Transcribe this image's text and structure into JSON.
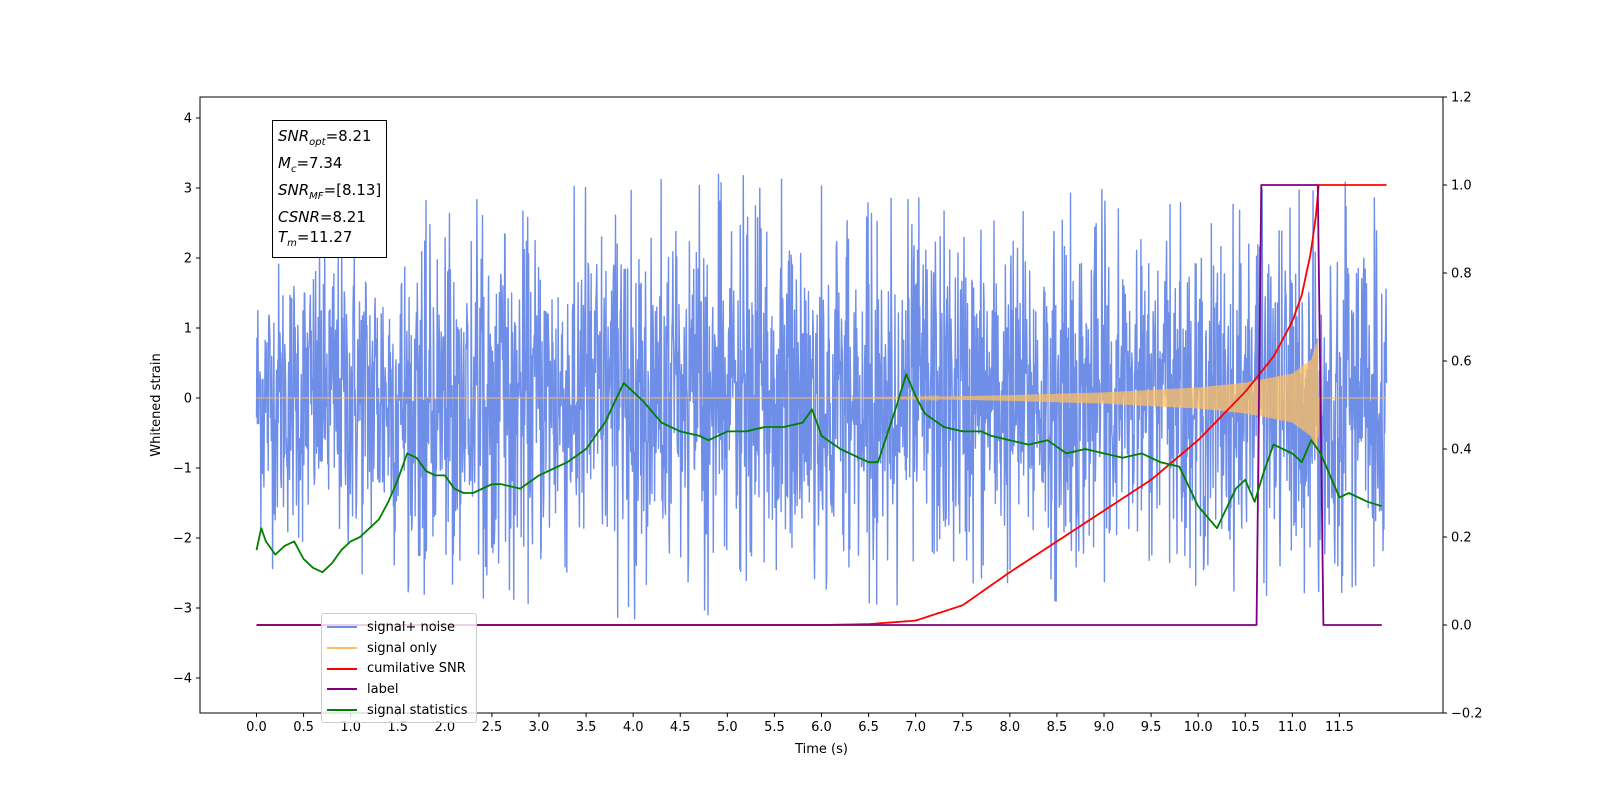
{
  "chart_data": {
    "type": "line",
    "xlabel": "Time (s)",
    "ylabel": "Whitened strain",
    "xlim": [
      -0.6,
      12.6
    ],
    "ylim": [
      -4.5,
      4.3
    ],
    "y2lim": [
      -0.2,
      1.2
    ],
    "x_ticks": [
      0.0,
      0.5,
      1.0,
      1.5,
      2.0,
      2.5,
      3.0,
      3.5,
      4.0,
      4.5,
      5.0,
      5.5,
      6.0,
      6.5,
      7.0,
      7.5,
      8.0,
      8.5,
      9.0,
      9.5,
      10.0,
      10.5,
      11.0,
      11.5
    ],
    "x_tick_labels": [
      "0.0",
      "0.5",
      "1.0",
      "1.5",
      "2.0",
      "2.5",
      "3.0",
      "3.5",
      "4.0",
      "4.5",
      "5.0",
      "5.5",
      "6.0",
      "6.5",
      "7.0",
      "7.5",
      "8.0",
      "8.5",
      "9.0",
      "9.5",
      "10.0",
      "10.5",
      "11.0",
      "11.5"
    ],
    "y_ticks": [
      -4,
      -3,
      -2,
      -1,
      0,
      1,
      2,
      3,
      4
    ],
    "y_tick_labels": [
      "−4",
      "−3",
      "−2",
      "−1",
      "0",
      "1",
      "2",
      "3",
      "4"
    ],
    "y2_ticks": [
      -0.2,
      0.0,
      0.2,
      0.4,
      0.6,
      0.8,
      1.0,
      1.2
    ],
    "y2_tick_labels": [
      "−0.2",
      "0.0",
      "0.2",
      "0.4",
      "0.6",
      "0.8",
      "1.0",
      "1.2"
    ],
    "info_box": {
      "snr_opt_value": "=8.21",
      "mc_value": "=7.34",
      "snr_mf_value": "=[8.13]",
      "csnr_value": "=8.21",
      "tm_value": "=11.27"
    },
    "legend": [
      {
        "name": "signal+ noise",
        "color": "#6f8ee8"
      },
      {
        "name": "signal only",
        "color": "#ffbf60"
      },
      {
        "name": "cumilative SNR",
        "color": "#ff0000"
      },
      {
        "name": "label",
        "color": "#800080"
      },
      {
        "name": "signal statistics",
        "color": "#008000"
      }
    ],
    "series": [
      {
        "name": "signal+ noise",
        "axis": "left",
        "color": "#6f8ee8",
        "envelope_x": [
          0.0,
          1.0,
          2.0,
          3.0,
          4.0,
          5.0,
          6.0,
          7.0,
          8.0,
          9.0,
          10.0,
          11.0,
          12.0
        ],
        "envelope_upper": [
          2.25,
          2.6,
          2.9,
          3.0,
          3.2,
          3.3,
          3.3,
          3.2,
          3.1,
          3.0,
          3.0,
          3.2,
          3.0
        ],
        "envelope_lower": [
          -2.4,
          -3.1,
          -2.8,
          -3.0,
          -3.3,
          -3.2,
          -3.0,
          -3.1,
          -3.0,
          -2.9,
          -2.8,
          -3.1,
          -2.6
        ]
      },
      {
        "name": "signal only",
        "axis": "left",
        "color": "#ffbf60",
        "envelope_x": [
          0.0,
          6.0,
          7.0,
          8.0,
          9.0,
          10.0,
          10.5,
          11.0,
          11.2,
          11.27,
          11.28,
          12.0
        ],
        "envelope_amplitude": [
          0.0,
          0.0,
          0.01,
          0.04,
          0.08,
          0.15,
          0.22,
          0.35,
          0.55,
          0.85,
          0.0,
          0.0
        ]
      },
      {
        "name": "cumilative SNR",
        "axis": "right",
        "color": "#ff0000",
        "x": [
          0.0,
          6.0,
          6.5,
          7.0,
          7.5,
          8.0,
          8.5,
          9.0,
          9.5,
          10.0,
          10.5,
          10.8,
          11.0,
          11.1,
          11.2,
          11.25,
          11.27,
          12.0
        ],
        "values": [
          0.0,
          0.0,
          0.002,
          0.01,
          0.045,
          0.12,
          0.19,
          0.26,
          0.33,
          0.42,
          0.53,
          0.61,
          0.69,
          0.75,
          0.85,
          0.93,
          1.0,
          1.0
        ]
      },
      {
        "name": "label",
        "axis": "right",
        "color": "#800080",
        "x": [
          0.0,
          10.62,
          10.67,
          11.27,
          11.33,
          11.95
        ],
        "values": [
          0.0,
          0.0,
          1.0,
          1.0,
          0.0,
          0.0
        ]
      },
      {
        "name": "signal statistics",
        "axis": "right",
        "color": "#008000",
        "x": [
          0.0,
          0.05,
          0.1,
          0.2,
          0.3,
          0.4,
          0.5,
          0.6,
          0.7,
          0.8,
          0.9,
          1.0,
          1.1,
          1.2,
          1.3,
          1.4,
          1.5,
          1.6,
          1.7,
          1.8,
          1.9,
          2.0,
          2.1,
          2.2,
          2.3,
          2.5,
          2.6,
          2.8,
          3.0,
          3.1,
          3.3,
          3.5,
          3.7,
          3.9,
          4.0,
          4.1,
          4.3,
          4.5,
          4.7,
          4.8,
          4.9,
          5.0,
          5.2,
          5.4,
          5.6,
          5.8,
          5.9,
          6.0,
          6.2,
          6.5,
          6.6,
          6.8,
          6.9,
          7.0,
          7.1,
          7.3,
          7.5,
          7.7,
          7.8,
          8.0,
          8.2,
          8.4,
          8.6,
          8.8,
          9.0,
          9.2,
          9.4,
          9.6,
          9.8,
          10.0,
          10.2,
          10.4,
          10.5,
          10.6,
          10.7,
          10.8,
          11.0,
          11.1,
          11.2,
          11.3,
          11.5,
          11.6,
          11.8,
          11.95
        ],
        "values": [
          0.17,
          0.22,
          0.19,
          0.16,
          0.18,
          0.19,
          0.15,
          0.13,
          0.12,
          0.14,
          0.17,
          0.19,
          0.2,
          0.22,
          0.24,
          0.28,
          0.33,
          0.39,
          0.38,
          0.35,
          0.34,
          0.34,
          0.31,
          0.3,
          0.3,
          0.32,
          0.32,
          0.31,
          0.34,
          0.35,
          0.37,
          0.4,
          0.46,
          0.55,
          0.53,
          0.51,
          0.46,
          0.44,
          0.43,
          0.42,
          0.43,
          0.44,
          0.44,
          0.45,
          0.45,
          0.46,
          0.49,
          0.43,
          0.4,
          0.37,
          0.37,
          0.5,
          0.57,
          0.52,
          0.48,
          0.45,
          0.44,
          0.44,
          0.43,
          0.42,
          0.41,
          0.42,
          0.39,
          0.4,
          0.39,
          0.38,
          0.39,
          0.37,
          0.36,
          0.27,
          0.22,
          0.31,
          0.33,
          0.28,
          0.35,
          0.41,
          0.39,
          0.37,
          0.42,
          0.39,
          0.29,
          0.3,
          0.28,
          0.27
        ]
      }
    ]
  }
}
